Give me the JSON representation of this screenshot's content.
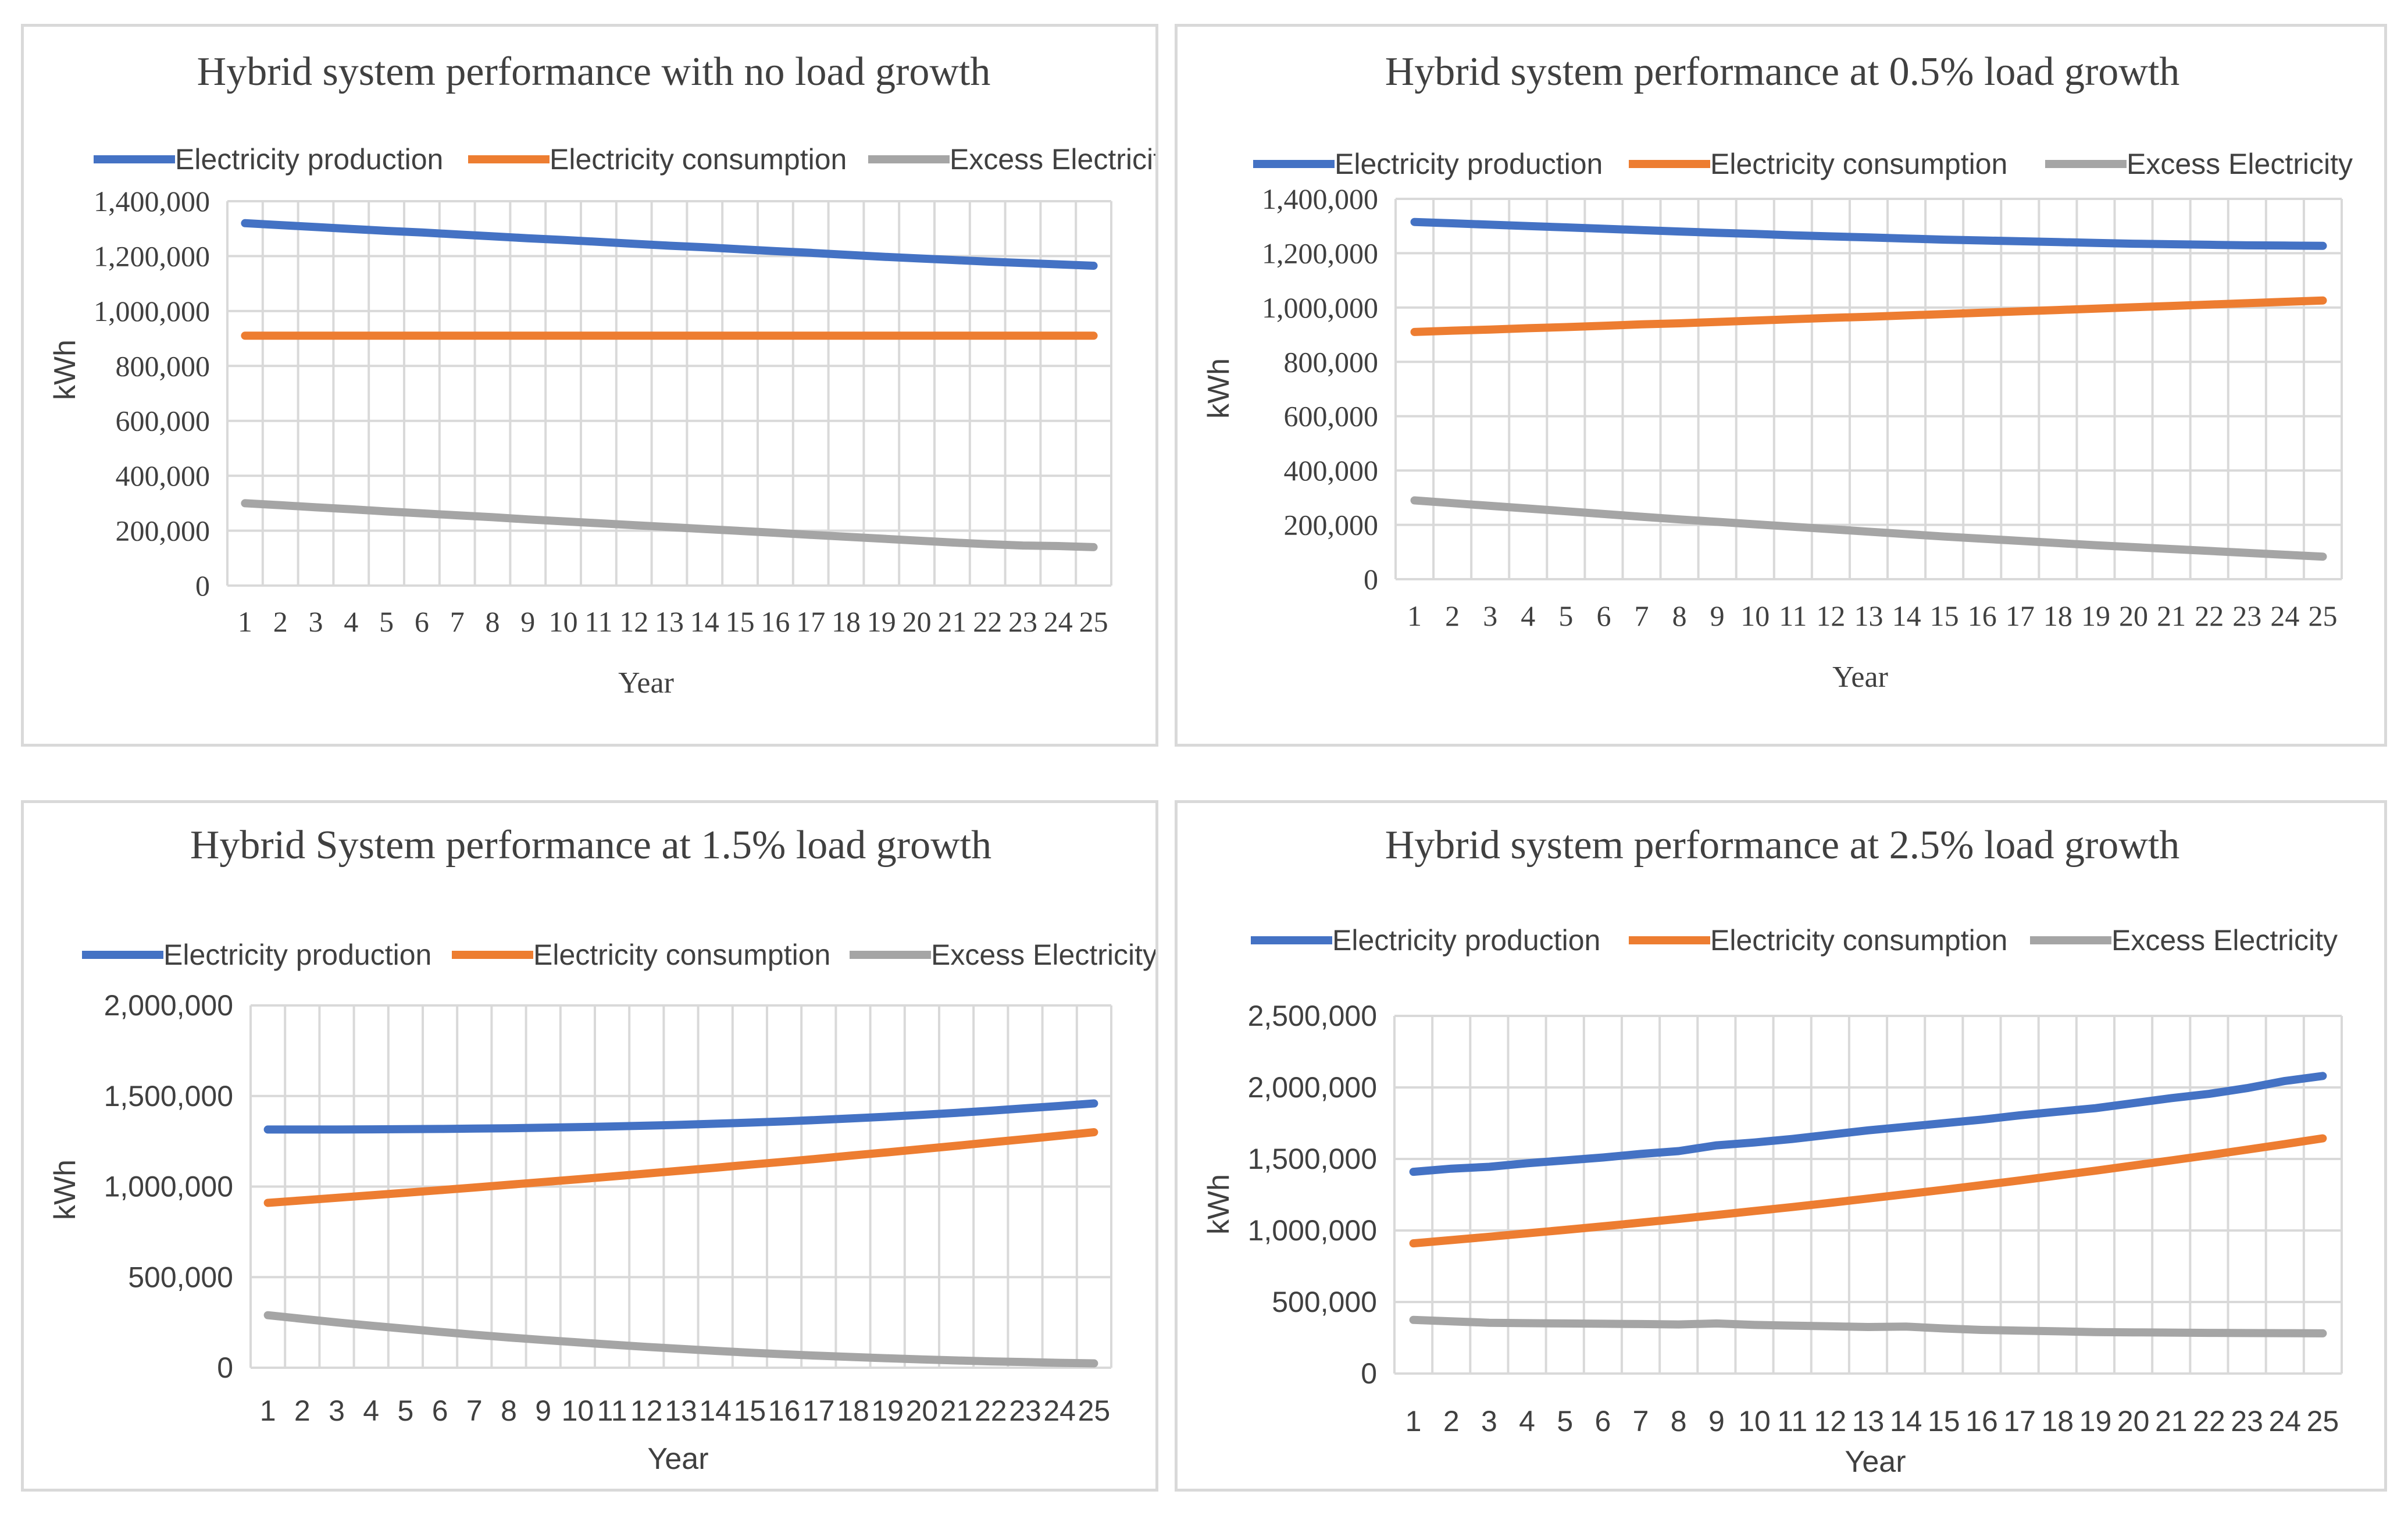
{
  "colors": {
    "production": "#4472C4",
    "consumption": "#ED7D31",
    "excess": "#A5A5A5",
    "grid": "#d9d9d9",
    "text": "#404040"
  },
  "chart_data": [
    {
      "type": "line",
      "title": "Hybrid system performance with no load growth",
      "xlabel": "Year",
      "ylabel": "kWh",
      "ylim": [
        0,
        1400000
      ],
      "yticks": [
        "0",
        "200,000",
        "400,000",
        "600,000",
        "800,000",
        "1,000,000",
        "1,200,000",
        "1,400,000"
      ],
      "categories": [
        "1",
        "2",
        "3",
        "4",
        "5",
        "6",
        "7",
        "8",
        "9",
        "10",
        "11",
        "12",
        "13",
        "14",
        "15",
        "16",
        "17",
        "18",
        "19",
        "20",
        "21",
        "22",
        "23",
        "24",
        "25"
      ],
      "legend": "top",
      "grid": true,
      "series": [
        {
          "name": "Electricity production",
          "values": [
            1320000,
            1313000,
            1306000,
            1299000,
            1292000,
            1286000,
            1279000,
            1272000,
            1265000,
            1259000,
            1252000,
            1245000,
            1238000,
            1232000,
            1225000,
            1218000,
            1212000,
            1205000,
            1198000,
            1192000,
            1186000,
            1180000,
            1175000,
            1170000,
            1165000
          ]
        },
        {
          "name": "Electricity consumption",
          "values": [
            910000,
            910000,
            910000,
            910000,
            910000,
            910000,
            910000,
            910000,
            910000,
            910000,
            910000,
            910000,
            910000,
            910000,
            910000,
            910000,
            910000,
            910000,
            910000,
            910000,
            910000,
            910000,
            910000,
            910000,
            910000
          ]
        },
        {
          "name": "Excess Electricity",
          "values": [
            300000,
            293000,
            285000,
            278000,
            270000,
            263000,
            256000,
            249000,
            241000,
            234000,
            227000,
            220000,
            213000,
            206000,
            199000,
            192000,
            185000,
            178000,
            171000,
            164000,
            157000,
            151000,
            146000,
            144000,
            140000
          ]
        }
      ]
    },
    {
      "type": "line",
      "title": "Hybrid system performance at 0.5% load growth",
      "xlabel": "Year",
      "ylabel": "kWh",
      "ylim": [
        0,
        1400000
      ],
      "yticks": [
        "0",
        "200,000",
        "400,000",
        "600,000",
        "800,000",
        "1,000,000",
        "1,200,000",
        "1,400,000"
      ],
      "categories": [
        "1",
        "2",
        "3",
        "4",
        "5",
        "6",
        "7",
        "8",
        "9",
        "10",
        "11",
        "12",
        "13",
        "14",
        "15",
        "16",
        "17",
        "18",
        "19",
        "20",
        "21",
        "22",
        "23",
        "24",
        "25"
      ],
      "legend": "top",
      "grid": true,
      "series": [
        {
          "name": "Electricity production",
          "values": [
            1315000,
            1310000,
            1305000,
            1300000,
            1295000,
            1290000,
            1285000,
            1280000,
            1275000,
            1271000,
            1266000,
            1262000,
            1258000,
            1254000,
            1250000,
            1247000,
            1244000,
            1241000,
            1238000,
            1235000,
            1233000,
            1231000,
            1229000,
            1228000,
            1227000
          ]
        },
        {
          "name": "Electricity consumption",
          "values": [
            910000,
            915000,
            919000,
            924000,
            928000,
            933000,
            938000,
            942000,
            947000,
            952000,
            957000,
            962000,
            966000,
            971000,
            976000,
            981000,
            986000,
            991000,
            996000,
            1001000,
            1006000,
            1011000,
            1016000,
            1021000,
            1026000
          ]
        },
        {
          "name": "Excess Electricity",
          "values": [
            290000,
            280000,
            270000,
            260000,
            250000,
            240000,
            230000,
            220000,
            211000,
            202000,
            193000,
            184000,
            175000,
            166000,
            157000,
            149000,
            141000,
            133000,
            125000,
            118000,
            111000,
            104000,
            97000,
            90000,
            83000
          ]
        }
      ]
    },
    {
      "type": "line",
      "title": "Hybrid System performance at 1.5% load growth",
      "xlabel": "Year",
      "ylabel": "kWh",
      "ylim": [
        0,
        2000000
      ],
      "yticks": [
        "0",
        "500,000",
        "1,000,000",
        "1,500,000",
        "2,000,000"
      ],
      "categories": [
        "1",
        "2",
        "3",
        "4",
        "5",
        "6",
        "7",
        "8",
        "9",
        "10",
        "11",
        "12",
        "13",
        "14",
        "15",
        "16",
        "17",
        "18",
        "19",
        "20",
        "21",
        "22",
        "23",
        "24",
        "25"
      ],
      "legend": "top",
      "grid": true,
      "series": [
        {
          "name": "Electricity production",
          "values": [
            1315000,
            1315000,
            1315000,
            1316000,
            1317000,
            1318000,
            1320000,
            1322000,
            1325000,
            1328000,
            1332000,
            1336000,
            1341000,
            1347000,
            1353000,
            1360000,
            1368000,
            1377000,
            1386000,
            1396000,
            1407000,
            1419000,
            1432000,
            1445000,
            1459000
          ]
        },
        {
          "name": "Electricity consumption",
          "values": [
            910000,
            924000,
            938000,
            952000,
            966000,
            980000,
            995000,
            1010000,
            1025000,
            1040000,
            1056000,
            1072000,
            1088000,
            1104000,
            1121000,
            1137000,
            1154000,
            1172000,
            1189000,
            1207000,
            1225000,
            1244000,
            1262000,
            1281000,
            1300000
          ]
        },
        {
          "name": "Excess Electricity",
          "values": [
            290000,
            270000,
            250000,
            232000,
            215000,
            198000,
            182000,
            167000,
            153000,
            140000,
            127000,
            115000,
            104000,
            93000,
            83000,
            74000,
            66000,
            59000,
            52000,
            46000,
            40000,
            35000,
            31000,
            27000,
            24000
          ]
        }
      ]
    },
    {
      "type": "line",
      "title": "Hybrid system performance at 2.5% load growth",
      "xlabel": "Year",
      "ylabel": "kWh",
      "ylim": [
        0,
        2500000
      ],
      "yticks": [
        "0",
        "500,000",
        "1,000,000",
        "1,500,000",
        "2,000,000",
        "2,500,000"
      ],
      "categories": [
        "1",
        "2",
        "3",
        "4",
        "5",
        "6",
        "7",
        "8",
        "9",
        "10",
        "11",
        "12",
        "13",
        "14",
        "15",
        "16",
        "17",
        "18",
        "19",
        "20",
        "21",
        "22",
        "23",
        "24",
        "25"
      ],
      "legend": "top",
      "grid": true,
      "series": [
        {
          "name": "Electricity production",
          "values": [
            1410000,
            1432000,
            1445000,
            1470000,
            1490000,
            1510000,
            1535000,
            1555000,
            1595000,
            1615000,
            1640000,
            1670000,
            1700000,
            1725000,
            1750000,
            1775000,
            1805000,
            1830000,
            1855000,
            1890000,
            1925000,
            1955000,
            1995000,
            2045000,
            2080000
          ]
        },
        {
          "name": "Electricity consumption",
          "values": [
            910000,
            933000,
            956000,
            980000,
            1004000,
            1029000,
            1055000,
            1081000,
            1108000,
            1136000,
            1164000,
            1193000,
            1223000,
            1254000,
            1285000,
            1317000,
            1350000,
            1384000,
            1418000,
            1454000,
            1490000,
            1527000,
            1565000,
            1604000,
            1644000
          ]
        },
        {
          "name": "Excess Electricity",
          "values": [
            375000,
            365000,
            355000,
            352000,
            350000,
            348000,
            346000,
            343000,
            350000,
            340000,
            335000,
            330000,
            325000,
            328000,
            315000,
            305000,
            300000,
            295000,
            290000,
            288000,
            286000,
            284000,
            283000,
            282000,
            281000
          ]
        }
      ]
    }
  ]
}
